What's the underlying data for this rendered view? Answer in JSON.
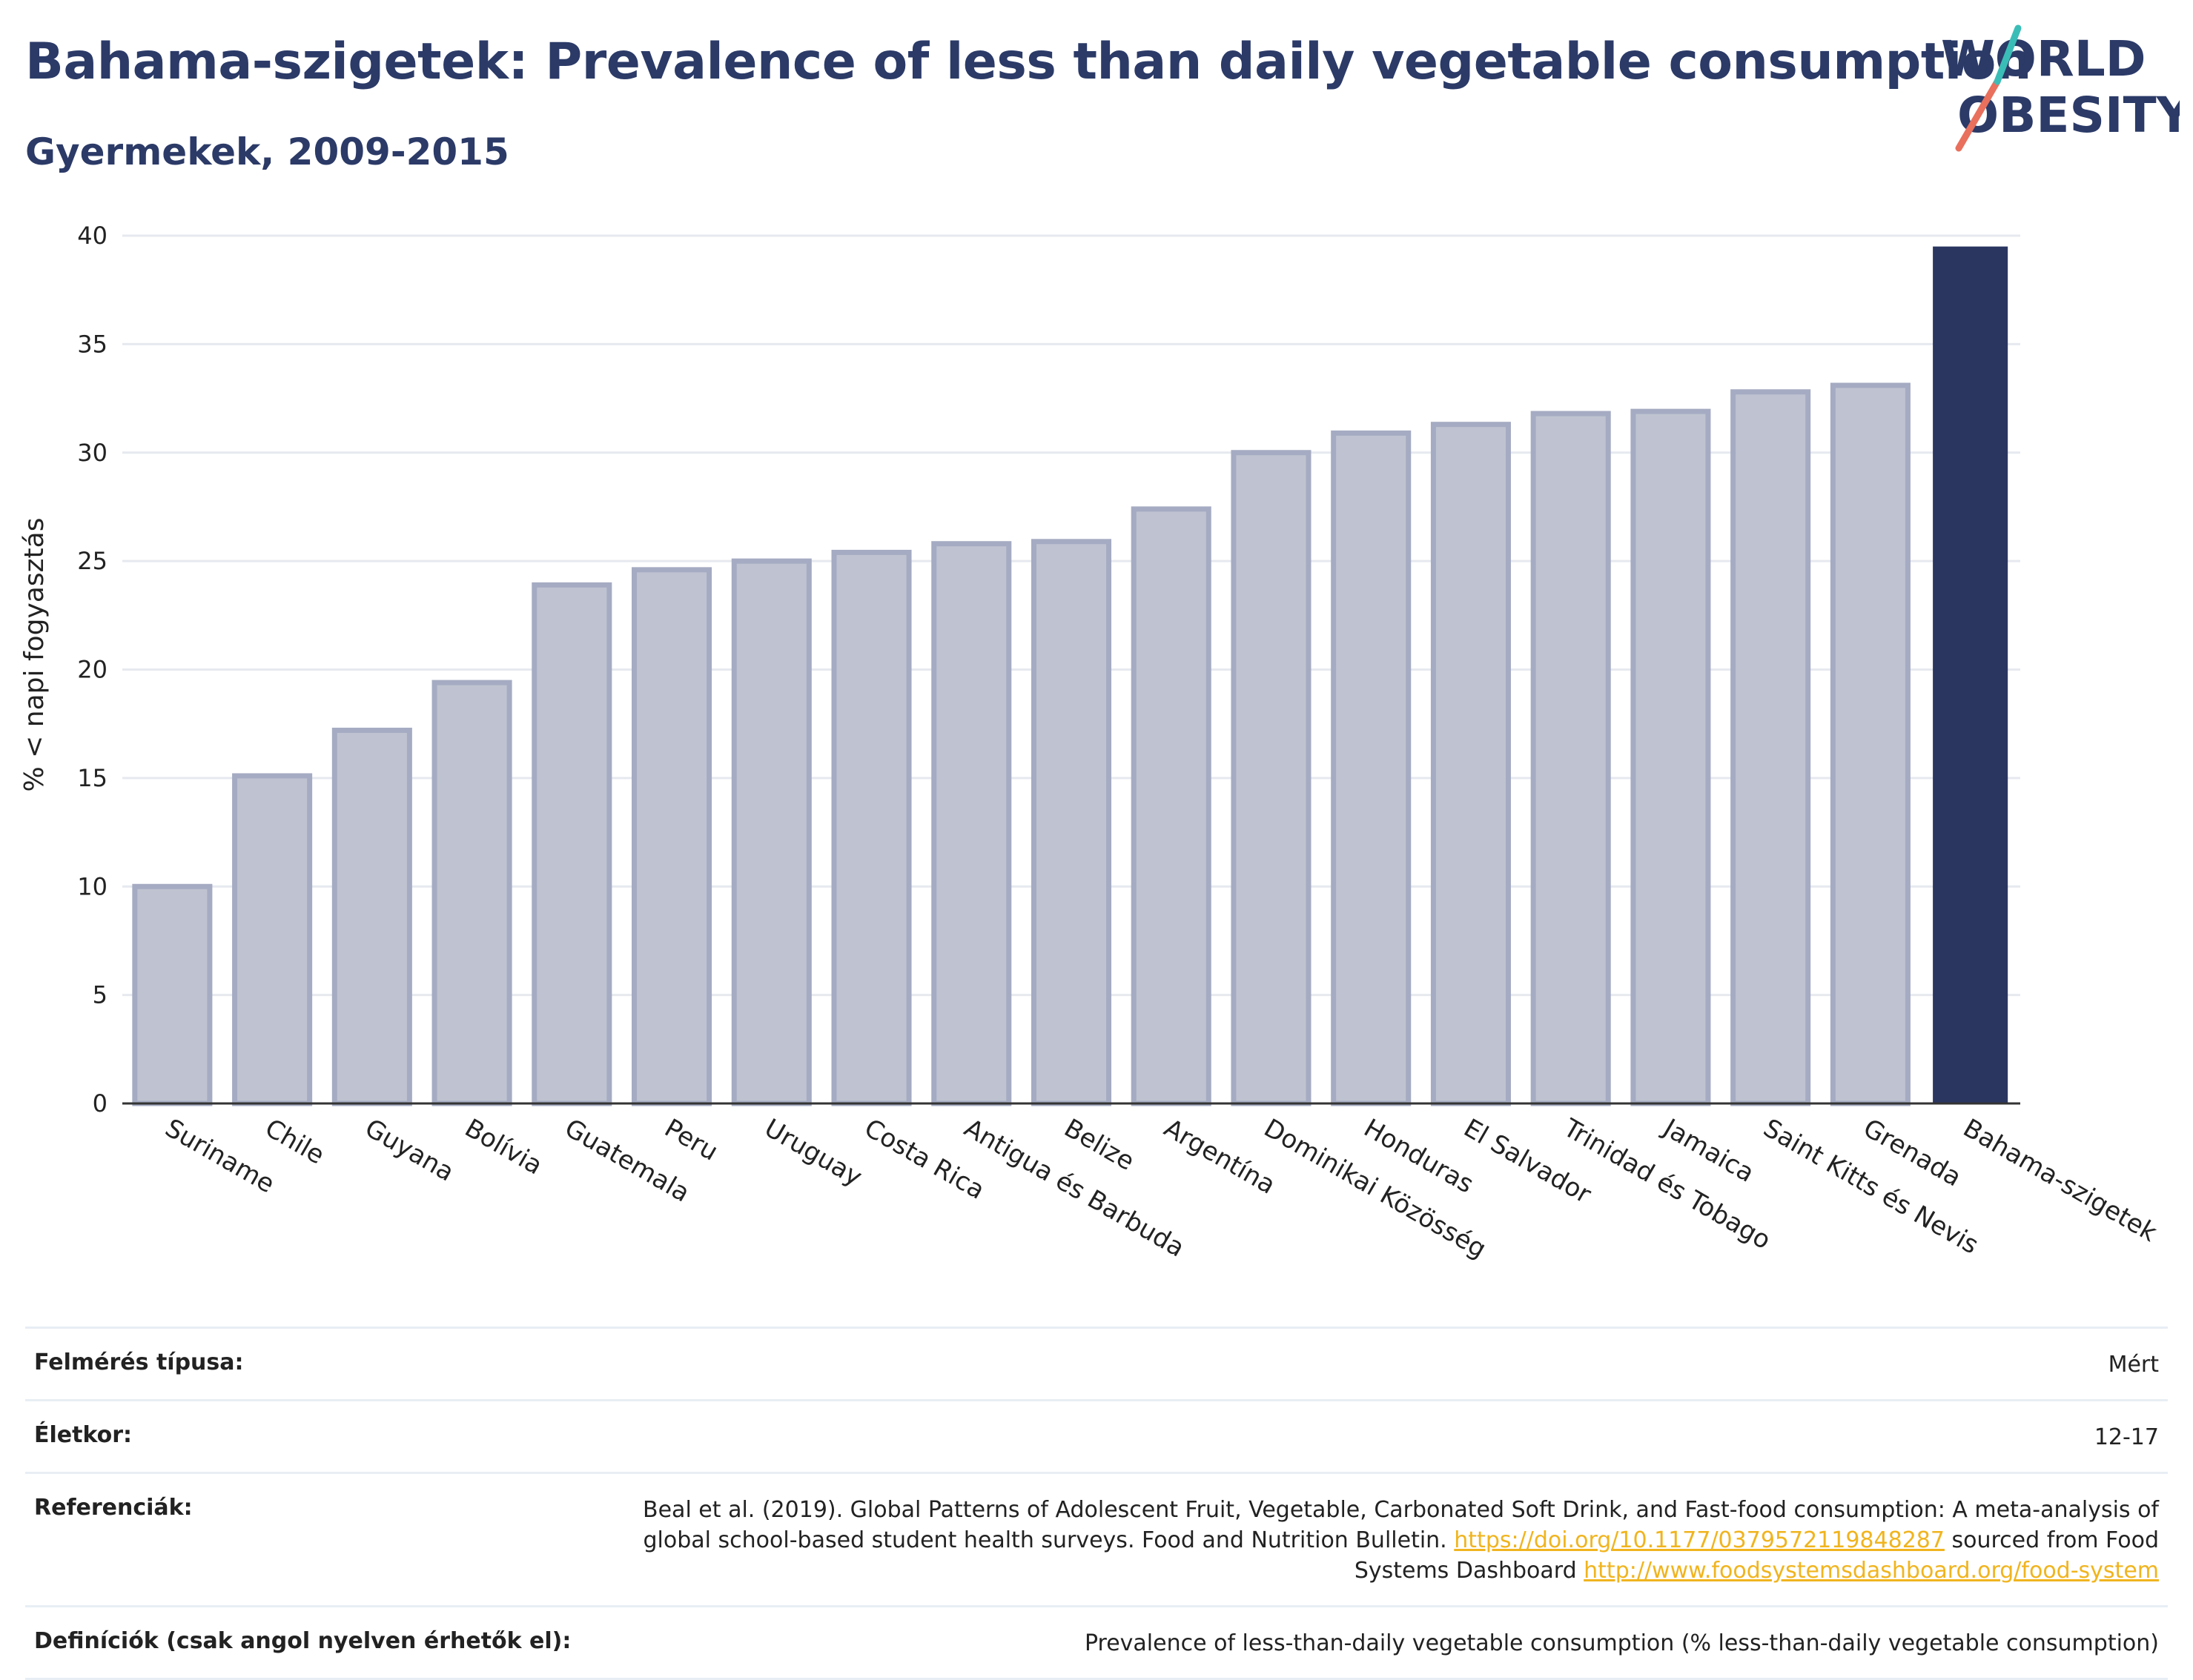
{
  "header": {
    "title": "Bahama-szigetek: Prevalence of less than daily vegetable consumption",
    "subtitle": "Gyermekek, 2009-2015"
  },
  "logo": {
    "line1": "WORLD",
    "line2": "OBESITY"
  },
  "chart_data": {
    "type": "bar",
    "ylabel": "% < napi fogyasztás",
    "xlabel": "",
    "ylim": [
      0,
      40
    ],
    "yticks": [
      0,
      5,
      10,
      15,
      20,
      25,
      30,
      35,
      40
    ],
    "grid": true,
    "categories": [
      "Suriname",
      "Chile",
      "Guyana",
      "Bolívia",
      "Guatemala",
      "Peru",
      "Uruguay",
      "Costa Rica",
      "Antigua és Barbuda",
      "Belize",
      "Argentína",
      "Dominikai Közösség",
      "Honduras",
      "El Salvador",
      "Trinidad és Tobago",
      "Jamaica",
      "Saint Kitts és Nevis",
      "Grenada",
      "Bahama-szigetek"
    ],
    "values": [
      10.0,
      15.1,
      17.2,
      19.4,
      23.9,
      24.6,
      25.0,
      25.4,
      25.8,
      25.9,
      27.4,
      30.0,
      30.9,
      31.3,
      31.8,
      31.9,
      32.8,
      33.1,
      39.5
    ],
    "highlight": "Bahama-szigetek",
    "colors": {
      "bar": "#bfc3d1",
      "bar_edge": "#a5abc2",
      "highlight": "#2b3660"
    }
  },
  "info": {
    "survey_type_label": "Felmérés típusa:",
    "survey_type_value": "Mért",
    "age_label": "Életkor:",
    "age_value": "12-17",
    "references_label": "Referenciák:",
    "references_text1": "Beal et al. (2019). Global Patterns of Adolescent Fruit, Vegetable, Carbonated Soft Drink, and Fast-food consumption: A meta-analysis of global school-based student health surveys. Food and Nutrition Bulletin.",
    "references_link1": "https://doi.org/10.1177/0379572119848287",
    "references_text2": "sourced from Food Systems Dashboard",
    "references_link2": "http://www.foodsystemsdashboard.org/food-system",
    "definitions_label": "Definíciók (csak angol nyelven érhetők el):",
    "definitions_value": "Prevalence of less-than-daily vegetable consumption (% less-than-daily vegetable consumption)"
  }
}
